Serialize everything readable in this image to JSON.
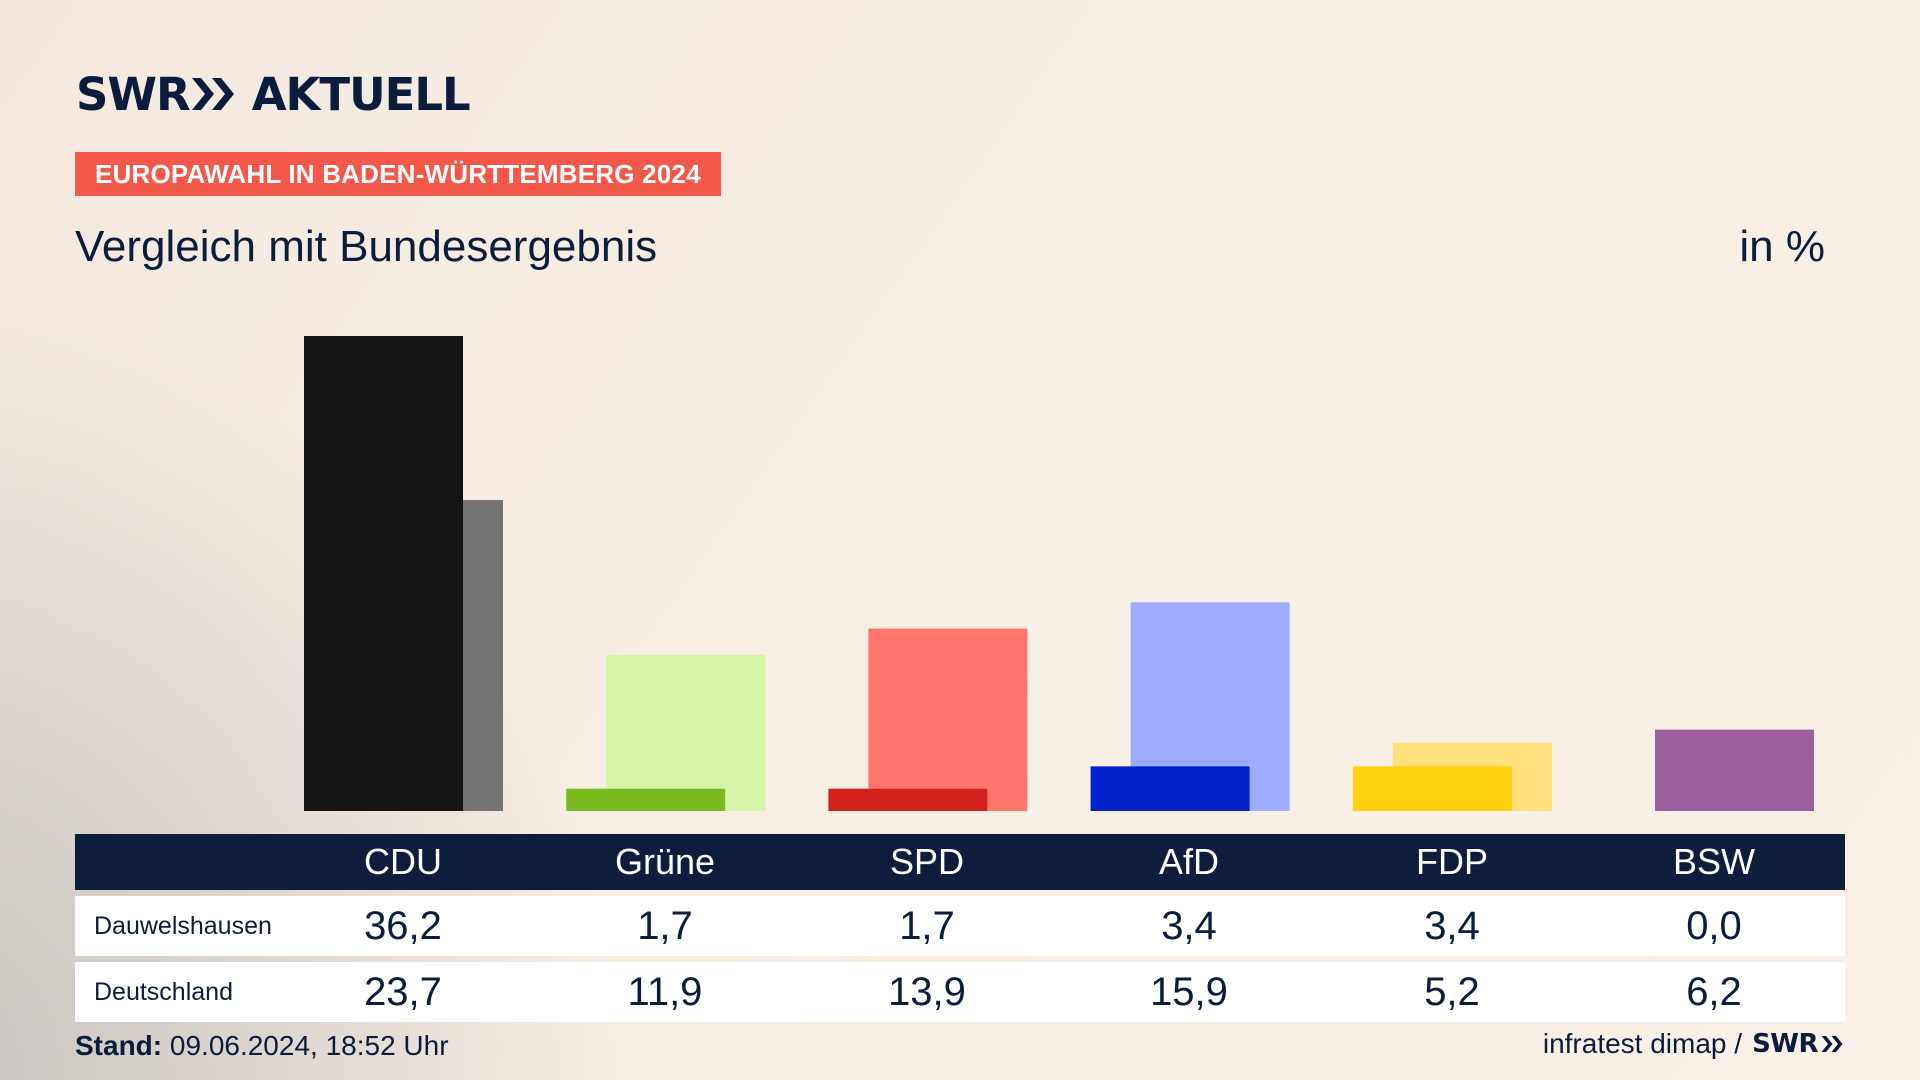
{
  "brand": {
    "word1": "SWR",
    "word2": "AKTUELL",
    "color": "#0c1c3c"
  },
  "kicker": "EUROPAWAHL IN BADEN-WÜRTTEMBERG 2024",
  "headline": "Vergleich mit Bundesergebnis",
  "unit": "in %",
  "chart_data": {
    "type": "bar",
    "categories": [
      "CDU",
      "Grüne",
      "SPD",
      "AfD",
      "FDP",
      "BSW"
    ],
    "series": [
      {
        "name": "Dauwelshausen",
        "values": [
          36.2,
          1.7,
          1.7,
          3.4,
          3.4,
          0.0
        ]
      },
      {
        "name": "Deutschland",
        "values": [
          23.7,
          11.9,
          13.9,
          15.9,
          5.2,
          6.2
        ]
      }
    ],
    "colors": {
      "Dauwelshausen": [
        "#141414",
        "#7aba1e",
        "#d3211e",
        "#0022c8",
        "#ffd00d",
        "#9a5f9c"
      ],
      "Deutschland": [
        "#737373",
        "#d6f5a8",
        "#ff746b",
        "#9dacff",
        "#ffe07a",
        "#9a5f9c"
      ]
    },
    "ylim": [
      0,
      36.2
    ],
    "grid": false
  },
  "table": {
    "row_labels": [
      "Dauwelshausen",
      "Deutschland"
    ],
    "values": [
      [
        "36,2",
        "1,7",
        "1,7",
        "3,4",
        "3,4",
        "0,0"
      ],
      [
        "23,7",
        "11,9",
        "13,9",
        "15,9",
        "5,2",
        "6,2"
      ]
    ]
  },
  "footer": {
    "stand_label": "Stand:",
    "stand_value": "09.06.2024, 18:52 Uhr",
    "source": "infratest dimap /",
    "source_logo": "SWR"
  }
}
